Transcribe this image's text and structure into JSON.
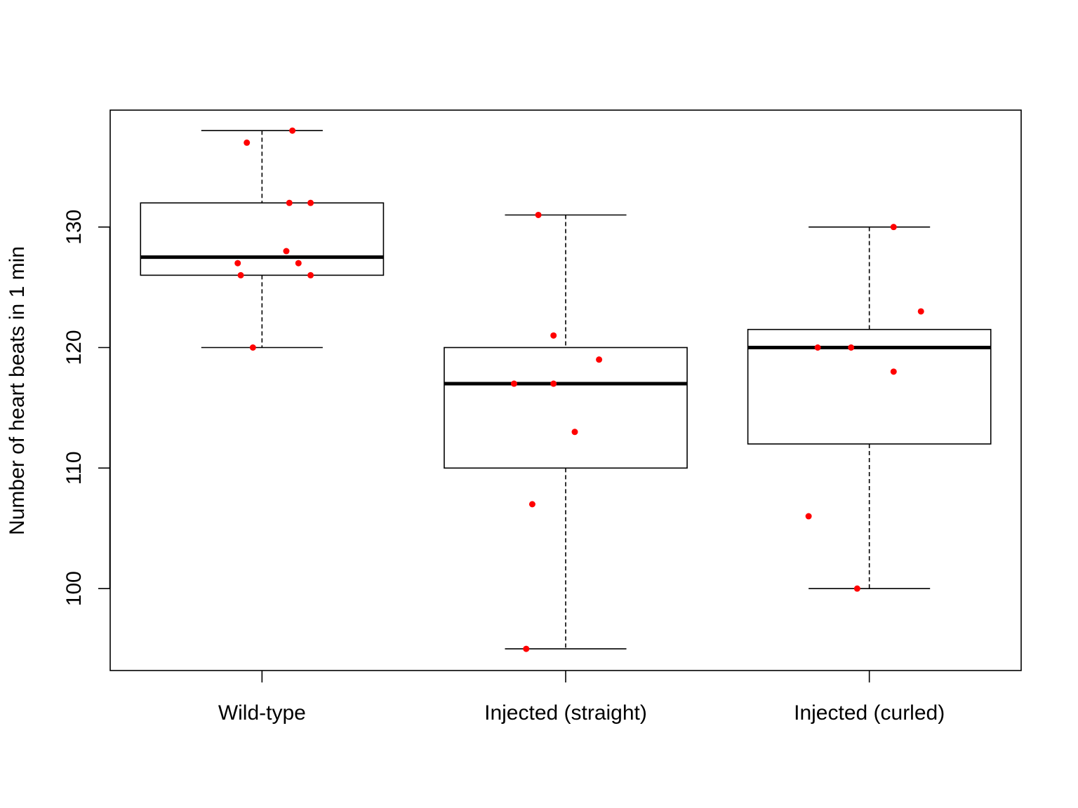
{
  "chart_data": {
    "type": "box",
    "ylabel": "Number of heart beats in 1 min",
    "ylim": [
      93.2,
      139.7
    ],
    "yticks": [
      100,
      110,
      120,
      130
    ],
    "categories": [
      "Wild-type",
      "Injected (straight)",
      "Injected (curled)"
    ],
    "boxes": [
      {
        "category": "Wild-type",
        "whisker_low": 120,
        "q1": 126,
        "median": 127.5,
        "q3": 132,
        "whisker_high": 138
      },
      {
        "category": "Injected (straight)",
        "whisker_low": 95,
        "q1": 110,
        "median": 117,
        "q3": 120,
        "whisker_high": 131
      },
      {
        "category": "Injected (curled)",
        "whisker_low": 100,
        "q1": 112,
        "median": 120,
        "q3": 121.5,
        "whisker_high": 130
      }
    ],
    "points": [
      {
        "group": 0,
        "jitter": 0.1,
        "y": 138
      },
      {
        "group": 0,
        "jitter": -0.05,
        "y": 137
      },
      {
        "group": 0,
        "jitter": 0.09,
        "y": 132
      },
      {
        "group": 0,
        "jitter": 0.16,
        "y": 132
      },
      {
        "group": 0,
        "jitter": 0.08,
        "y": 128
      },
      {
        "group": 0,
        "jitter": -0.08,
        "y": 127
      },
      {
        "group": 0,
        "jitter": 0.12,
        "y": 127
      },
      {
        "group": 0,
        "jitter": -0.07,
        "y": 126
      },
      {
        "group": 0,
        "jitter": 0.16,
        "y": 126
      },
      {
        "group": 0,
        "jitter": -0.03,
        "y": 120
      },
      {
        "group": 1,
        "jitter": -0.09,
        "y": 131
      },
      {
        "group": 1,
        "jitter": -0.04,
        "y": 121
      },
      {
        "group": 1,
        "jitter": 0.11,
        "y": 119
      },
      {
        "group": 1,
        "jitter": -0.17,
        "y": 117
      },
      {
        "group": 1,
        "jitter": -0.04,
        "y": 117
      },
      {
        "group": 1,
        "jitter": 0.03,
        "y": 113
      },
      {
        "group": 1,
        "jitter": -0.11,
        "y": 107
      },
      {
        "group": 1,
        "jitter": -0.13,
        "y": 95
      },
      {
        "group": 2,
        "jitter": 0.08,
        "y": 130
      },
      {
        "group": 2,
        "jitter": 0.17,
        "y": 123
      },
      {
        "group": 2,
        "jitter": -0.17,
        "y": 120
      },
      {
        "group": 2,
        "jitter": -0.06,
        "y": 120
      },
      {
        "group": 2,
        "jitter": 0.08,
        "y": 118
      },
      {
        "group": 2,
        "jitter": -0.2,
        "y": 106
      },
      {
        "group": 2,
        "jitter": -0.04,
        "y": 100
      }
    ],
    "point_color": "#ff0000",
    "box_fill": "#ffffff",
    "line_color": "#000000",
    "grid": false
  }
}
